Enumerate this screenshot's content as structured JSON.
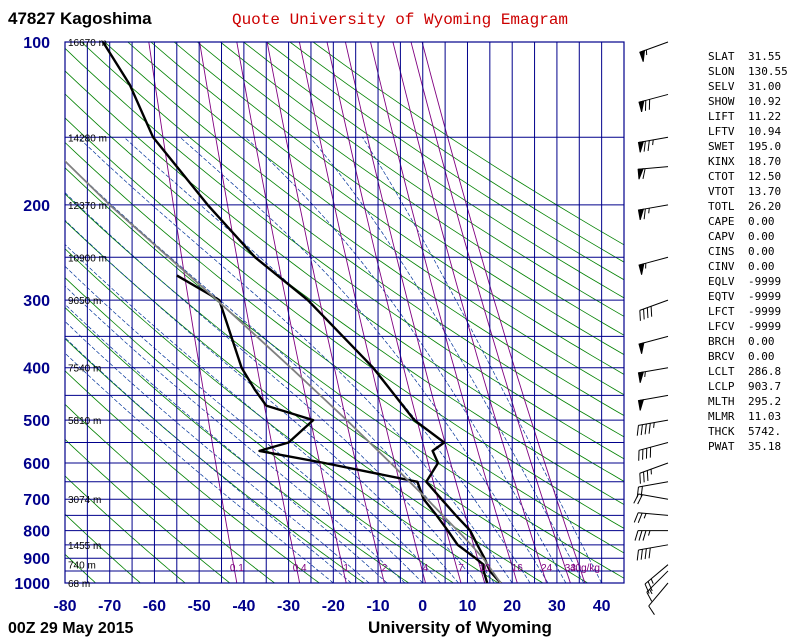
{
  "header": {
    "station": "47827  Kagoshima",
    "title": "Quote University of Wyoming Emagram",
    "time": "00Z 29 May 2015",
    "credit": "University of Wyoming"
  },
  "colors": {
    "grid": "#00008b",
    "title": "#cc0000",
    "pressure_label": "#00008b",
    "dry_adiabat": "#008000",
    "moist_adiabat": "#003399",
    "mixing_ratio": "#800080",
    "profile": "#000000",
    "parcel": "#808080"
  },
  "stats": [
    {
      "name": "SLAT",
      "value": "31.55"
    },
    {
      "name": "SLON",
      "value": "130.55"
    },
    {
      "name": "SELV",
      "value": "31.00"
    },
    {
      "name": "SHOW",
      "value": "10.92"
    },
    {
      "name": "LIFT",
      "value": "11.22"
    },
    {
      "name": "LFTV",
      "value": "10.94"
    },
    {
      "name": "SWET",
      "value": "195.0"
    },
    {
      "name": "KINX",
      "value": "18.70"
    },
    {
      "name": "CTOT",
      "value": "12.50"
    },
    {
      "name": "VTOT",
      "value": "13.70"
    },
    {
      "name": "TOTL",
      "value": "26.20"
    },
    {
      "name": "CAPE",
      "value": "0.00"
    },
    {
      "name": "CAPV",
      "value": "0.00"
    },
    {
      "name": "CINS",
      "value": "0.00"
    },
    {
      "name": "CINV",
      "value": "0.00"
    },
    {
      "name": "EQLV",
      "value": "-9999"
    },
    {
      "name": "EQTV",
      "value": "-9999"
    },
    {
      "name": "LFCT",
      "value": "-9999"
    },
    {
      "name": "LFCV",
      "value": "-9999"
    },
    {
      "name": "BRCH",
      "value": "0.00"
    },
    {
      "name": "BRCV",
      "value": "0.00"
    },
    {
      "name": "LCLT",
      "value": "286.8"
    },
    {
      "name": "LCLP",
      "value": "903.7"
    },
    {
      "name": "MLTH",
      "value": "295.2"
    },
    {
      "name": "MLMR",
      "value": "11.03"
    },
    {
      "name": "THCK",
      "value": "5742."
    },
    {
      "name": "PWAT",
      "value": "35.18"
    }
  ],
  "chart_data": {
    "type": "line",
    "title": "Quote University of Wyoming Emagram",
    "y_scale": "log-pressure",
    "xlim": [
      -80,
      45
    ],
    "ylim": [
      1000,
      100
    ],
    "x_ticks": [
      -80,
      -70,
      -60,
      -50,
      -40,
      -30,
      -20,
      -10,
      0,
      10,
      20,
      30,
      40
    ],
    "y_ticks": [
      1000,
      900,
      800,
      700,
      600,
      500,
      400,
      300,
      200,
      100
    ],
    "height_labels": [
      {
        "p": 1000,
        "label": "68 m"
      },
      {
        "p": 925,
        "label": "740 m"
      },
      {
        "p": 850,
        "label": "1455 m"
      },
      {
        "p": 700,
        "label": "3074 m"
      },
      {
        "p": 500,
        "label": "5810 m"
      },
      {
        "p": 400,
        "label": "7540 m"
      },
      {
        "p": 300,
        "label": "9650 m"
      },
      {
        "p": 250,
        "label": "10900 m"
      },
      {
        "p": 200,
        "label": "12370 m"
      },
      {
        "p": 150,
        "label": "14280 m"
      },
      {
        "p": 100,
        "label": "16670 m"
      }
    ],
    "mixing_ratio_labels": [
      {
        "w": 0.1,
        "label": "0.1"
      },
      {
        "w": 0.4,
        "label": "0.4"
      },
      {
        "w": 1,
        "label": "1"
      },
      {
        "w": 2,
        "label": "2"
      },
      {
        "w": 4,
        "label": "4"
      },
      {
        "w": 7,
        "label": "7"
      },
      {
        "w": 10,
        "label": "10"
      },
      {
        "w": 16,
        "label": "16"
      },
      {
        "w": 24,
        "label": "24"
      },
      {
        "w": 33,
        "label": "33"
      },
      {
        "w": 40,
        "label": "40g/kg"
      }
    ],
    "series": [
      {
        "role": "temperature",
        "points": [
          [
            1012,
            15.6
          ],
          [
            1000,
            17.4
          ],
          [
            950,
            15.0
          ],
          [
            925,
            14.4
          ],
          [
            900,
            13.8
          ],
          [
            850,
            12.2
          ],
          [
            800,
            10.6
          ],
          [
            750,
            7.4
          ],
          [
            700,
            4.2
          ],
          [
            650,
            0.8
          ],
          [
            600,
            3.4
          ],
          [
            570,
            2.2
          ],
          [
            550,
            4.8
          ],
          [
            500,
            -1.9
          ],
          [
            400,
            -11.1
          ],
          [
            300,
            -25.7
          ],
          [
            250,
            -37.5
          ],
          [
            200,
            -48.1
          ],
          [
            150,
            -60.3
          ],
          [
            120,
            -65.5
          ],
          [
            100,
            -71.5
          ]
        ]
      },
      {
        "role": "dewpoint",
        "points": [
          [
            1000,
            14.4
          ],
          [
            950,
            13.6
          ],
          [
            925,
            13.6
          ],
          [
            900,
            11.8
          ],
          [
            850,
            7.8
          ],
          [
            800,
            5.6
          ],
          [
            750,
            3.1
          ],
          [
            700,
            0.2
          ],
          [
            650,
            -1.2
          ],
          [
            600,
            -22.0
          ],
          [
            570,
            -36.5
          ],
          [
            550,
            -30.0
          ],
          [
            500,
            -24.5
          ],
          [
            470,
            -35.0
          ],
          [
            440,
            -37.5
          ],
          [
            400,
            -40.5
          ],
          [
            300,
            -45.5
          ],
          [
            270,
            -55.0
          ]
        ]
      },
      {
        "role": "parcel",
        "points": [
          [
            1000,
            17.4
          ],
          [
            904,
            13.7
          ],
          [
            850,
            10.8
          ],
          [
            800,
            7.8
          ],
          [
            700,
            1.0
          ],
          [
            600,
            -7.2
          ],
          [
            500,
            -17.0
          ],
          [
            400,
            -29.5
          ],
          [
            300,
            -46.0
          ],
          [
            200,
            -70.0
          ],
          [
            160,
            -82.0
          ]
        ]
      }
    ],
    "wind_barbs": [
      {
        "p": 1000,
        "dir": 220,
        "spd": 10
      },
      {
        "p": 950,
        "dir": 225,
        "spd": 15
      },
      {
        "p": 925,
        "dir": 230,
        "spd": 25
      },
      {
        "p": 850,
        "dir": 260,
        "spd": 40
      },
      {
        "p": 800,
        "dir": 270,
        "spd": 35
      },
      {
        "p": 750,
        "dir": 275,
        "spd": 25
      },
      {
        "p": 700,
        "dir": 280,
        "spd": 20
      },
      {
        "p": 650,
        "dir": 260,
        "spd": 20
      },
      {
        "p": 600,
        "dir": 250,
        "spd": 35
      },
      {
        "p": 550,
        "dir": 255,
        "spd": 40
      },
      {
        "p": 500,
        "dir": 260,
        "spd": 45
      },
      {
        "p": 450,
        "dir": 260,
        "spd": 50
      },
      {
        "p": 400,
        "dir": 260,
        "spd": 55
      },
      {
        "p": 350,
        "dir": 255,
        "spd": 50
      },
      {
        "p": 300,
        "dir": 250,
        "spd": 40
      },
      {
        "p": 250,
        "dir": 255,
        "spd": 55
      },
      {
        "p": 200,
        "dir": 260,
        "spd": 65
      },
      {
        "p": 170,
        "dir": 265,
        "spd": 60
      },
      {
        "p": 150,
        "dir": 260,
        "spd": 75
      },
      {
        "p": 125,
        "dir": 255,
        "spd": 70
      },
      {
        "p": 100,
        "dir": 250,
        "spd": 55
      }
    ]
  }
}
